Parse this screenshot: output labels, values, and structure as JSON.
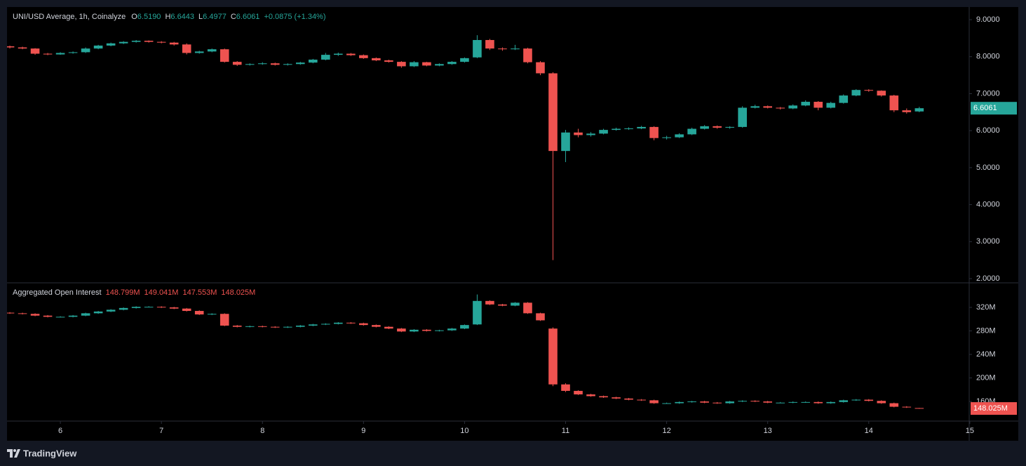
{
  "brand": "TradingView",
  "chart_data": [
    {
      "type": "candlestick",
      "title": "UNI/USD Average, 1h, Coinalyze",
      "legend": [
        {
          "key": "O",
          "text": "6.5190"
        },
        {
          "key": "H",
          "text": "6.6443"
        },
        {
          "key": "L",
          "text": "6.4977"
        },
        {
          "key": "C",
          "text": "6.6061"
        }
      ],
      "change": "+0.0875 (+1.34%)",
      "last_label": "6.6061",
      "up_color": "#26a69a",
      "down_color": "#ef5350",
      "xlim": [
        5.472,
        14.994
      ],
      "ylim": [
        1.886,
        9.342
      ],
      "yticks": [
        {
          "value": 9,
          "label": "9.0000"
        },
        {
          "value": 8,
          "label": "8.0000"
        },
        {
          "value": 7,
          "label": "7.0000"
        },
        {
          "value": 6,
          "label": "6.0000"
        },
        {
          "value": 5,
          "label": "5.0000"
        },
        {
          "value": 4,
          "label": "4.0000"
        },
        {
          "value": 3,
          "label": "3.0000"
        },
        {
          "value": 2,
          "label": "2.0000"
        }
      ],
      "x": [
        5.5,
        5.625,
        5.75,
        5.875,
        6,
        6.125,
        6.25,
        6.375,
        6.5,
        6.625,
        6.75,
        6.875,
        7,
        7.125,
        7.25,
        7.375,
        7.5,
        7.625,
        7.75,
        7.875,
        8,
        8.125,
        8.25,
        8.375,
        8.5,
        8.625,
        8.75,
        8.875,
        9,
        9.125,
        9.25,
        9.375,
        9.5,
        9.625,
        9.75,
        9.875,
        10,
        10.125,
        10.25,
        10.375,
        10.5,
        10.625,
        10.75,
        10.875,
        11,
        11.125,
        11.25,
        11.375,
        11.5,
        11.625,
        11.75,
        11.875,
        12,
        12.125,
        12.25,
        12.375,
        12.5,
        12.625,
        12.75,
        12.875,
        13,
        13.125,
        13.25,
        13.375,
        13.5,
        13.625,
        13.75,
        13.875,
        14,
        14.125,
        14.25,
        14.375,
        14.5
      ],
      "ohlc": [
        [
          8.28,
          8.3,
          8.22,
          8.25
        ],
        [
          8.25,
          8.27,
          8.2,
          8.22
        ],
        [
          8.22,
          8.23,
          8.05,
          8.08
        ],
        [
          8.08,
          8.1,
          8.04,
          8.06
        ],
        [
          8.06,
          8.12,
          8.05,
          8.1
        ],
        [
          8.1,
          8.14,
          8.08,
          8.12
        ],
        [
          8.12,
          8.25,
          8.1,
          8.22
        ],
        [
          8.22,
          8.32,
          8.2,
          8.3
        ],
        [
          8.3,
          8.38,
          8.28,
          8.36
        ],
        [
          8.36,
          8.42,
          8.34,
          8.4
        ],
        [
          8.4,
          8.45,
          8.38,
          8.43
        ],
        [
          8.43,
          8.44,
          8.38,
          8.4
        ],
        [
          8.4,
          8.42,
          8.36,
          8.38
        ],
        [
          8.38,
          8.4,
          8.3,
          8.33
        ],
        [
          8.33,
          8.36,
          8.06,
          8.1
        ],
        [
          8.1,
          8.16,
          8.08,
          8.14
        ],
        [
          8.14,
          8.22,
          8.12,
          8.2
        ],
        [
          8.2,
          8.22,
          7.84,
          7.86
        ],
        [
          7.86,
          7.88,
          7.75,
          7.78
        ],
        [
          7.78,
          7.82,
          7.76,
          7.8
        ],
        [
          7.8,
          7.85,
          7.78,
          7.82
        ],
        [
          7.82,
          7.84,
          7.76,
          7.78
        ],
        [
          7.78,
          7.82,
          7.76,
          7.8
        ],
        [
          7.8,
          7.86,
          7.78,
          7.84
        ],
        [
          7.84,
          7.94,
          7.82,
          7.92
        ],
        [
          7.92,
          8.1,
          7.9,
          8.05
        ],
        [
          8.05,
          8.11,
          8.02,
          8.08
        ],
        [
          8.08,
          8.1,
          8.02,
          8.04
        ],
        [
          8.04,
          8.06,
          7.94,
          7.96
        ],
        [
          7.96,
          7.98,
          7.88,
          7.9
        ],
        [
          7.9,
          7.92,
          7.84,
          7.86
        ],
        [
          7.86,
          7.88,
          7.7,
          7.74
        ],
        [
          7.74,
          7.88,
          7.72,
          7.85
        ],
        [
          7.85,
          7.86,
          7.74,
          7.76
        ],
        [
          7.76,
          7.82,
          7.74,
          7.8
        ],
        [
          7.8,
          7.88,
          7.78,
          7.86
        ],
        [
          7.86,
          7.98,
          7.84,
          7.96
        ],
        [
          7.98,
          8.58,
          7.96,
          8.45
        ],
        [
          8.45,
          8.48,
          8.18,
          8.22
        ],
        [
          8.22,
          8.25,
          8.16,
          8.2
        ],
        [
          8.2,
          8.32,
          8.18,
          8.22
        ],
        [
          8.22,
          8.24,
          7.82,
          7.85
        ],
        [
          7.85,
          7.88,
          7.5,
          7.55
        ],
        [
          7.55,
          7.58,
          2.5,
          5.45
        ],
        [
          5.45,
          6.02,
          5.15,
          5.95
        ],
        [
          5.95,
          6.05,
          5.82,
          5.88
        ],
        [
          5.88,
          5.96,
          5.84,
          5.92
        ],
        [
          5.92,
          6.05,
          5.9,
          6.02
        ],
        [
          6.02,
          6.08,
          6.0,
          6.05
        ],
        [
          6.05,
          6.09,
          6.02,
          6.06
        ],
        [
          6.06,
          6.13,
          6.04,
          6.1
        ],
        [
          6.1,
          6.12,
          5.74,
          5.8
        ],
        [
          5.8,
          5.86,
          5.76,
          5.82
        ],
        [
          5.82,
          5.93,
          5.8,
          5.9
        ],
        [
          5.9,
          6.08,
          5.88,
          6.05
        ],
        [
          6.05,
          6.15,
          6.03,
          6.12
        ],
        [
          6.12,
          6.14,
          6.05,
          6.08
        ],
        [
          6.08,
          6.12,
          6.05,
          6.1
        ],
        [
          6.1,
          6.66,
          6.08,
          6.62
        ],
        [
          6.62,
          6.7,
          6.6,
          6.66
        ],
        [
          6.66,
          6.68,
          6.6,
          6.62
        ],
        [
          6.62,
          6.64,
          6.57,
          6.6
        ],
        [
          6.6,
          6.71,
          6.58,
          6.68
        ],
        [
          6.68,
          6.82,
          6.66,
          6.78
        ],
        [
          6.78,
          6.8,
          6.55,
          6.62
        ],
        [
          6.62,
          6.78,
          6.6,
          6.75
        ],
        [
          6.75,
          6.98,
          6.73,
          6.95
        ],
        [
          6.95,
          7.12,
          6.93,
          7.1
        ],
        [
          7.1,
          7.12,
          7.05,
          7.08
        ],
        [
          7.08,
          7.09,
          6.92,
          6.95
        ],
        [
          6.95,
          6.97,
          6.5,
          6.55
        ],
        [
          6.55,
          6.6,
          6.46,
          6.5
        ],
        [
          6.519,
          6.6443,
          6.4977,
          6.6061
        ]
      ]
    },
    {
      "type": "candlestick",
      "title": "Aggregated Open Interest",
      "legend": [
        {
          "text": "148.799M"
        },
        {
          "text": "149.041M"
        },
        {
          "text": "147.553M"
        },
        {
          "text": "148.025M"
        }
      ],
      "last_label": "148.025M",
      "up_color": "#26a69a",
      "down_color": "#ef5350",
      "xlim": [
        5.472,
        14.994
      ],
      "ylim": [
        126.6,
        361.8
      ],
      "xticks": [
        6,
        7,
        8,
        9,
        10,
        11,
        12,
        13,
        14,
        15
      ],
      "yticks": [
        {
          "value": 320,
          "label": "320M"
        },
        {
          "value": 280,
          "label": "280M"
        },
        {
          "value": 240,
          "label": "240M"
        },
        {
          "value": 200,
          "label": "200M"
        },
        {
          "value": 160,
          "label": "160M"
        }
      ],
      "x": [
        5.5,
        5.625,
        5.75,
        5.875,
        6,
        6.125,
        6.25,
        6.375,
        6.5,
        6.625,
        6.75,
        6.875,
        7,
        7.125,
        7.25,
        7.375,
        7.5,
        7.625,
        7.75,
        7.875,
        8,
        8.125,
        8.25,
        8.375,
        8.5,
        8.625,
        8.75,
        8.875,
        9,
        9.125,
        9.25,
        9.375,
        9.5,
        9.625,
        9.75,
        9.875,
        10,
        10.125,
        10.25,
        10.375,
        10.5,
        10.625,
        10.75,
        10.875,
        11,
        11.125,
        11.25,
        11.375,
        11.5,
        11.625,
        11.75,
        11.875,
        12,
        12.125,
        12.25,
        12.375,
        12.5,
        12.625,
        12.75,
        12.875,
        13,
        13.125,
        13.25,
        13.375,
        13.5,
        13.625,
        13.75,
        13.875,
        14,
        14.125,
        14.25,
        14.375,
        14.5
      ],
      "ohlc": [
        [
          311,
          312,
          309,
          310
        ],
        [
          310,
          311,
          308,
          309
        ],
        [
          309,
          310,
          305,
          306
        ],
        [
          306,
          307,
          303,
          304
        ],
        [
          304,
          305,
          303,
          304
        ],
        [
          304,
          307,
          303,
          306
        ],
        [
          306,
          311,
          305,
          310
        ],
        [
          310,
          314,
          309,
          313
        ],
        [
          313,
          317,
          312,
          316
        ],
        [
          316,
          320,
          315,
          319
        ],
        [
          319,
          322,
          318,
          321
        ],
        [
          321,
          322,
          320,
          321
        ],
        [
          321,
          322,
          319,
          320
        ],
        [
          320,
          321,
          317,
          318
        ],
        [
          318,
          319,
          313,
          314
        ],
        [
          314,
          315,
          307,
          308
        ],
        [
          308,
          310,
          307,
          309
        ],
        [
          309,
          310,
          288,
          289
        ],
        [
          289,
          290,
          286,
          287
        ],
        [
          287,
          289,
          286,
          288
        ],
        [
          288,
          289,
          286,
          287
        ],
        [
          287,
          288,
          285,
          286
        ],
        [
          286,
          288,
          285,
          287
        ],
        [
          287,
          290,
          286,
          289
        ],
        [
          289,
          292,
          288,
          291
        ],
        [
          291,
          293,
          290,
          292
        ],
        [
          292,
          295,
          291,
          294
        ],
        [
          294,
          295,
          292,
          293
        ],
        [
          293,
          294,
          289,
          290
        ],
        [
          290,
          291,
          286,
          287
        ],
        [
          287,
          288,
          283,
          284
        ],
        [
          284,
          285,
          278,
          279
        ],
        [
          279,
          283,
          278,
          282
        ],
        [
          282,
          283,
          279,
          280
        ],
        [
          280,
          282,
          279,
          281
        ],
        [
          281,
          285,
          280,
          284
        ],
        [
          284,
          291,
          283,
          290
        ],
        [
          291,
          342,
          290,
          331
        ],
        [
          331,
          332,
          324,
          325
        ],
        [
          325,
          326,
          322,
          323
        ],
        [
          323,
          329,
          322,
          328
        ],
        [
          328,
          329,
          309,
          310
        ],
        [
          310,
          311,
          297,
          298
        ],
        [
          284,
          286,
          186,
          189
        ],
        [
          189,
          191,
          176,
          178
        ],
        [
          178,
          179,
          171,
          172
        ],
        [
          172,
          173,
          168,
          169
        ],
        [
          169,
          170,
          166,
          167
        ],
        [
          167,
          168,
          164,
          165
        ],
        [
          165,
          166,
          162,
          163
        ],
        [
          163,
          164,
          161,
          162
        ],
        [
          162,
          163,
          156,
          157
        ],
        [
          157,
          158,
          156,
          157
        ],
        [
          157,
          160,
          156,
          159
        ],
        [
          159,
          161,
          158,
          160
        ],
        [
          160,
          161,
          157,
          158
        ],
        [
          158,
          159,
          156,
          157
        ],
        [
          157,
          161,
          156,
          160
        ],
        [
          160,
          162,
          159,
          161
        ],
        [
          161,
          162,
          159,
          160
        ],
        [
          160,
          161,
          157,
          158
        ],
        [
          158,
          159,
          157,
          158
        ],
        [
          158,
          160,
          157,
          159
        ],
        [
          159,
          160,
          158,
          159
        ],
        [
          159,
          160,
          156,
          157
        ],
        [
          157,
          160,
          156,
          159
        ],
        [
          159,
          163,
          158,
          162
        ],
        [
          162,
          164,
          161,
          163
        ],
        [
          163,
          164,
          160,
          161
        ],
        [
          161,
          162,
          156,
          157
        ],
        [
          157,
          158,
          150,
          151
        ],
        [
          151,
          152,
          149,
          150
        ],
        [
          148.799,
          149.041,
          147.553,
          148.025
        ]
      ]
    }
  ]
}
